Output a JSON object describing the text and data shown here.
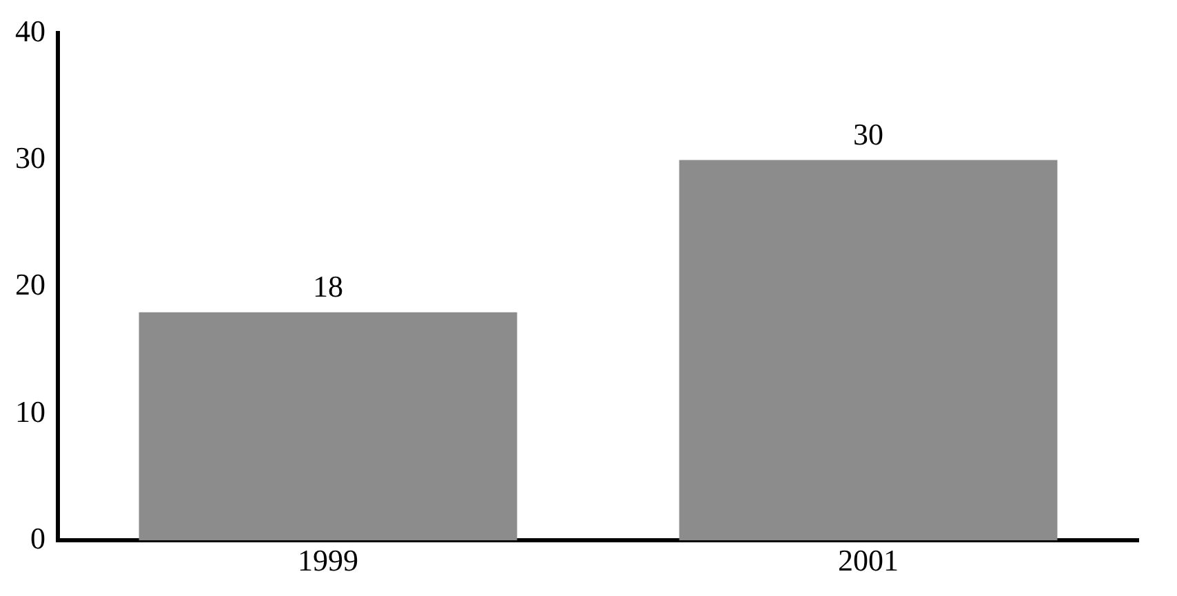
{
  "chart_data": {
    "type": "bar",
    "categories": [
      "1999",
      "2001"
    ],
    "values": [
      18,
      30
    ],
    "color": "#8c8c8c",
    "ylim": [
      0,
      40
    ],
    "yticks": [
      0,
      10,
      20,
      30,
      40
    ],
    "grid": false,
    "legend": false,
    "data_labels": true
  }
}
